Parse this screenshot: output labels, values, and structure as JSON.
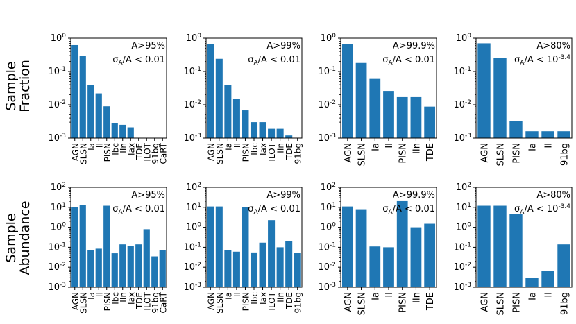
{
  "row_labels": [
    {
      "line1": "Sample",
      "line2": "Fraction"
    },
    {
      "line1": "Sample",
      "line2": "Abundance"
    }
  ],
  "chart_data": [
    {
      "type": "bar",
      "yscale": "log",
      "ylim": [
        0.001,
        1
      ],
      "row": 0,
      "col": 0,
      "annot_top": "A>95%",
      "annot_bottom": "σ_A/A < 0.01",
      "categories": [
        "AGN",
        "SLSN",
        "Ia",
        "II",
        "PISN",
        "Ibc",
        "IIn",
        "Iax",
        "TDE",
        "ILOT",
        "91bg",
        "CaRT"
      ],
      "values": [
        0.62,
        0.29,
        0.04,
        0.022,
        0.009,
        0.0028,
        0.0025,
        0.0021,
        0.001,
        0.001,
        0.001,
        0.001
      ]
    },
    {
      "type": "bar",
      "yscale": "log",
      "ylim": [
        0.001,
        1
      ],
      "row": 0,
      "col": 1,
      "annot_top": "A>99%",
      "annot_bottom": "σ_A/A < 0.01",
      "categories": [
        "AGN",
        "SLSN",
        "Ia",
        "II",
        "PISN",
        "Ibc",
        "Iax",
        "ILOT",
        "IIn",
        "TDE",
        "91bg"
      ],
      "values": [
        0.65,
        0.24,
        0.04,
        0.015,
        0.0068,
        0.003,
        0.003,
        0.0019,
        0.0019,
        0.0012,
        0.001
      ]
    },
    {
      "type": "bar",
      "yscale": "log",
      "ylim": [
        0.001,
        1
      ],
      "row": 0,
      "col": 2,
      "annot_top": "A>99.9%",
      "annot_bottom": "σ_A/A < 0.01",
      "categories": [
        "AGN",
        "SLSN",
        "Ia",
        "II",
        "PISN",
        "IIn",
        "TDE"
      ],
      "values": [
        0.65,
        0.18,
        0.06,
        0.026,
        0.017,
        0.017,
        0.0088
      ]
    },
    {
      "type": "bar",
      "yscale": "log",
      "ylim": [
        0.001,
        1
      ],
      "row": 0,
      "col": 3,
      "annot_top": "A>80%",
      "annot_bottom": "σ_A/A < 10^-3.4",
      "categories": [
        "AGN",
        "SLSN",
        "PISN",
        "Ia",
        "II",
        "91bg"
      ],
      "values": [
        0.7,
        0.26,
        0.0032,
        0.0016,
        0.0016,
        0.0016
      ]
    },
    {
      "type": "bar",
      "yscale": "log",
      "ylim": [
        0.001,
        100
      ],
      "row": 1,
      "col": 0,
      "annot_top": "A>95%",
      "annot_bottom": "σ_A/A < 0.01",
      "categories": [
        "AGN",
        "SLSN",
        "Ia",
        "II",
        "PISN",
        "Ibc",
        "IIn",
        "Iax",
        "TDE",
        "ILOT",
        "91bg",
        "CaRT"
      ],
      "values": [
        10,
        13,
        0.075,
        0.085,
        12,
        0.05,
        0.14,
        0.12,
        0.14,
        0.8,
        0.035,
        0.07
      ]
    },
    {
      "type": "bar",
      "yscale": "log",
      "ylim": [
        0.001,
        100
      ],
      "row": 1,
      "col": 1,
      "annot_top": "A>99%",
      "annot_bottom": "σ_A/A < 0.01",
      "categories": [
        "AGN",
        "SLSN",
        "Ia",
        "II",
        "PISN",
        "Ibc",
        "Iax",
        "ILOT",
        "IIn",
        "TDE",
        "91bg"
      ],
      "values": [
        11,
        11,
        0.075,
        0.06,
        10,
        0.055,
        0.17,
        2.3,
        0.1,
        0.2,
        0.052
      ]
    },
    {
      "type": "bar",
      "yscale": "log",
      "ylim": [
        0.001,
        100
      ],
      "row": 1,
      "col": 2,
      "annot_top": "A>99.9%",
      "annot_bottom": "σ_A/A < 0.01",
      "categories": [
        "AGN",
        "SLSN",
        "Ia",
        "II",
        "PISN",
        "IIn",
        "TDE"
      ],
      "values": [
        11,
        8,
        0.11,
        0.1,
        22,
        1.0,
        1.5
      ]
    },
    {
      "type": "bar",
      "yscale": "log",
      "ylim": [
        0.001,
        100
      ],
      "row": 1,
      "col": 3,
      "annot_top": "A>80%",
      "annot_bottom": "σ_A/A < 10^-3.4",
      "categories": [
        "AGN",
        "SLSN",
        "PISN",
        "Ia",
        "II",
        "91bg"
      ],
      "values": [
        12,
        12,
        4.5,
        0.003,
        0.0065,
        0.14
      ]
    }
  ],
  "colors": {
    "bar": "#1f77b4"
  }
}
